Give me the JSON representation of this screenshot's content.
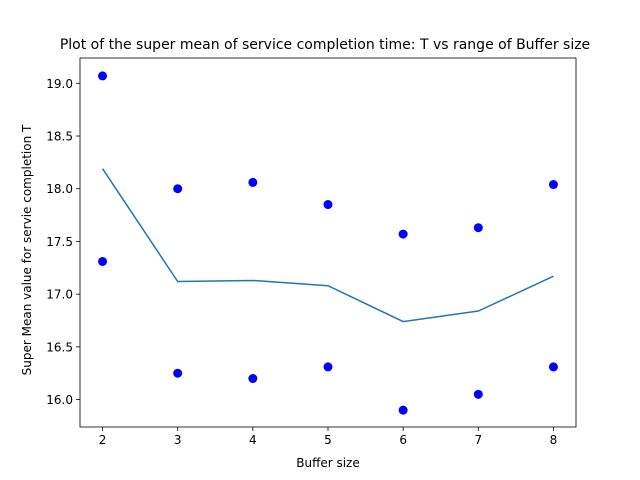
{
  "chart_data": {
    "type": "scatter",
    "title": "Plot of the super mean of service completion time: T vs range of Buffer size",
    "xlabel": "Buffer size",
    "ylabel": "Super Mean value for servie completion T",
    "xlim": [
      1.7,
      8.3
    ],
    "ylim": [
      15.74,
      19.24
    ],
    "x_ticks": [
      "2",
      "3",
      "4",
      "5",
      "6",
      "7",
      "8"
    ],
    "y_ticks": [
      "16.0",
      "16.5",
      "17.0",
      "17.5",
      "18.0",
      "18.5",
      "19.0"
    ],
    "grid": false,
    "series": [
      {
        "kind": "scatter",
        "color": "#0000ff",
        "points": [
          {
            "x": 2,
            "y": 19.07
          },
          {
            "x": 2,
            "y": 17.31
          },
          {
            "x": 3,
            "y": 18.0
          },
          {
            "x": 3,
            "y": 16.25
          },
          {
            "x": 4,
            "y": 18.06
          },
          {
            "x": 4,
            "y": 16.2
          },
          {
            "x": 5,
            "y": 17.85
          },
          {
            "x": 5,
            "y": 16.31
          },
          {
            "x": 6,
            "y": 17.57
          },
          {
            "x": 6,
            "y": 15.9
          },
          {
            "x": 7,
            "y": 17.63
          },
          {
            "x": 7,
            "y": 16.05
          },
          {
            "x": 8,
            "y": 18.04
          },
          {
            "x": 8,
            "y": 16.31
          }
        ]
      },
      {
        "kind": "line",
        "color": "#1f77b4",
        "x": [
          2,
          3,
          4,
          5,
          6,
          7,
          8
        ],
        "y": [
          18.19,
          17.12,
          17.13,
          17.08,
          16.74,
          16.84,
          17.17
        ]
      }
    ]
  }
}
